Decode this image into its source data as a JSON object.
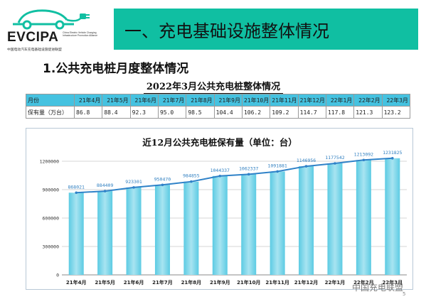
{
  "logo": {
    "name": "EVCIPA",
    "en": "China Electric Vehicle Charging Infrastructure Promotion Alliance",
    "cn": "中国电动汽车充电基础设施促进联盟"
  },
  "header": {
    "title": "一、充电基础设施整体情况"
  },
  "section": {
    "heading": "1.公共充电桩月度整体情况"
  },
  "table": {
    "title": "2022年3月公共充电桩整体情况",
    "row_header_month": "月份",
    "row_header_value": "保有量（万台）",
    "months": [
      "21年4月",
      "21年5月",
      "21年6月",
      "21年7月",
      "21年8月",
      "21年9月",
      "21年10月",
      "21年11月",
      "21年12月",
      "22年1月",
      "22年2月",
      "22年3月"
    ],
    "values": [
      "86.8",
      "88.4",
      "92.3",
      "95.0",
      "98.5",
      "104.4",
      "106.2",
      "109.2",
      "114.7",
      "117.8",
      "121.3",
      "123.2"
    ]
  },
  "chart_data": {
    "type": "bar",
    "title": "近12月公共充电桩保有量（单位：台）",
    "categories": [
      "21年4月",
      "21年5月",
      "21年6月",
      "21年7月",
      "21年8月",
      "21年9月",
      "21年10月",
      "21年11月",
      "21年12月",
      "22年1月",
      "22年2月",
      "22年3月"
    ],
    "values": [
      868021,
      884409,
      923301,
      950470,
      984855,
      1044337,
      1062337,
      1091881,
      1146956,
      1177542,
      1213092,
      1231825
    ],
    "value_labels": [
      "868021",
      "884409",
      "923301",
      "950470",
      "984855",
      "1044337",
      "1062337",
      "1091881",
      "1146956",
      "1177542",
      "1213092",
      "1231825"
    ],
    "line_overlay": true,
    "ylim": [
      0,
      1200000
    ],
    "yticks": [
      0,
      300000,
      600000,
      900000,
      1200000
    ],
    "ytick_labels": [
      "0",
      "300000",
      "600000",
      "900000",
      "1200000"
    ],
    "grid": true,
    "colors": {
      "bar": "#5ccbe3",
      "bar_light": "#a8e4f1",
      "line": "#2f82c8",
      "grid": "#d4d4d4"
    }
  },
  "watermark": "中国充电联盟",
  "page_number": "5"
}
